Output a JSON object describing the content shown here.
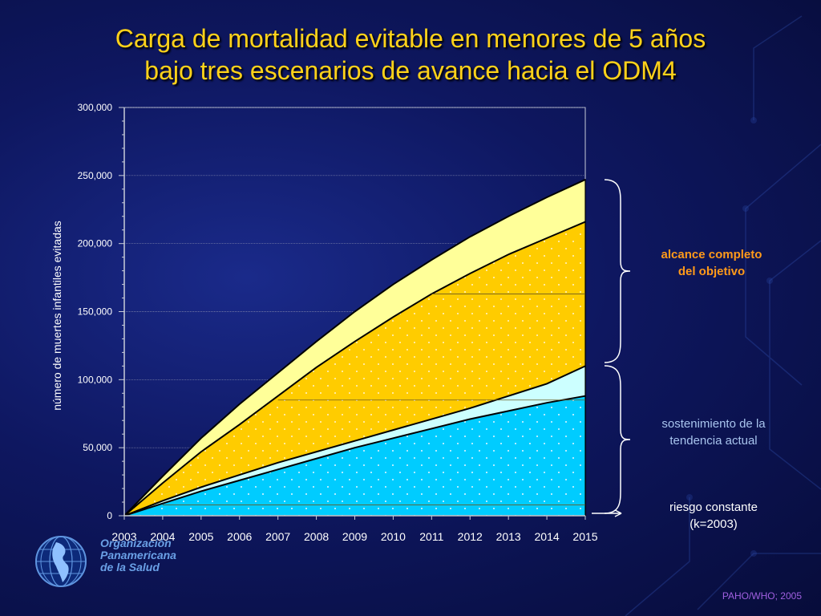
{
  "title_lines": [
    "Carga de mortalidad evitable en menores de 5 años",
    "bajo tres escenarios de avance hacia el ODM4"
  ],
  "annotations": {
    "goal": [
      "alcance completo",
      "del objetivo"
    ],
    "trend": [
      "sostenimiento de la",
      "tendencia actual"
    ],
    "constant": [
      "riesgo constante",
      "(k=2003)"
    ]
  },
  "logo": {
    "lines": [
      "Organización",
      "Panamericana",
      "de la Salud"
    ]
  },
  "credit": "PAHO/WHO; 2005",
  "colors": {
    "goal_top": "#ffff99",
    "goal_main": "#ffcc00",
    "trend": "#ccffff",
    "constant": "#00ccff",
    "title": "#ffd21a"
  },
  "chart_data": {
    "type": "area",
    "title": "Carga de mortalidad evitable en menores de 5 años bajo tres escenarios de avance hacia el ODM4",
    "xlabel": "",
    "ylabel": "número de muertes infantiles evitadas",
    "x": [
      2003,
      2004,
      2005,
      2006,
      2007,
      2008,
      2009,
      2010,
      2011,
      2012,
      2013,
      2014,
      2015
    ],
    "x_tick_labels": [
      "2003",
      "2004",
      "2005",
      "2006",
      "2007",
      "2008",
      "2009",
      "2010",
      "2011",
      "2012",
      "2013",
      "2014",
      "2015"
    ],
    "ylim": [
      0,
      300000
    ],
    "y_ticks": [
      0,
      50000,
      100000,
      150000,
      200000,
      250000,
      300000
    ],
    "y_tick_labels": [
      "0",
      "50,000",
      "100,000",
      "150,000",
      "200,000",
      "250,000",
      "300,000"
    ],
    "grid": true,
    "stacked_boundaries": [
      {
        "key": "constant",
        "values": [
          0,
          9000,
          18000,
          26000,
          34000,
          42000,
          50000,
          57000,
          64000,
          71000,
          77000,
          83000,
          88000
        ]
      },
      {
        "key": "trend",
        "values": [
          0,
          11000,
          21000,
          30000,
          39000,
          47000,
          55000,
          63000,
          71000,
          79000,
          88000,
          97000,
          110000
        ]
      },
      {
        "key": "goal_main",
        "values": [
          0,
          24000,
          47000,
          67000,
          88000,
          109000,
          128000,
          146000,
          163000,
          178000,
          192000,
          204000,
          216000
        ]
      },
      {
        "key": "goal_top",
        "values": [
          0,
          29000,
          57000,
          82000,
          105000,
          128000,
          150000,
          170000,
          188000,
          205000,
          220000,
          234000,
          247000
        ]
      }
    ],
    "reference_lines": [
      {
        "from_x": 2004,
        "to_x": 2015,
        "y": 8000
      },
      {
        "from_x": 2007,
        "to_x": 2015,
        "y": 85000
      },
      {
        "from_x": 2011,
        "to_x": 2015,
        "y": 163000
      }
    ]
  }
}
